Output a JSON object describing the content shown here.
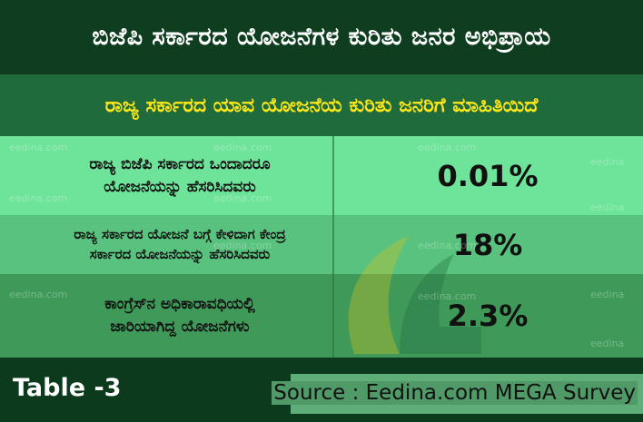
{
  "title": "ಬಿಜೆಪಿ ಸರ್ಕಾರದ ಯೋಜನೆಗಳ ಕುರಿತು ಜನರ ಅಭಿಪ್ರಾಯ",
  "subtitle": "ರಾಜ್ಯ ಸರ್ಕಾರದ ಯಾವ ಯೋಜನೆಯ ಕುರಿತು ಜನರಿಗೆ ಮಾಹಿತಿಯಿದೆ",
  "rows": [
    {
      "label_line1": "ರಾಜ್ಯ ಬಿಜೆಪಿ ಸರ್ಕಾರದ ಒಂದಾದರೂ",
      "label_line2": "ಯೋಜನೆಯನ್ನು ಹೆಸರಿಸಿದವರು",
      "value": "0.01%"
    },
    {
      "label_line1": "ರಾಜ್ಯ ಸರ್ಕಾರದ ಯೋಜನೆ ಬಗ್ಗೆ ಕೇಳಿದಾಗ ಕೇಂದ್ರ",
      "label_line2": "ಸರ್ಕಾರದ ಯೋಜನೆಯನ್ನು ಹೆಸರಿಸಿದವರು",
      "value": "18%"
    },
    {
      "label_line1": "ಕಾಂಗ್ರೆಸ್‌ನ ಅಧಿಕಾರಾವಧಿಯಲ್ಲಿ",
      "label_line2": "ಜಾರಿಯಾಗಿದ್ದ ಯೋಜನೆಗಳು",
      "value": "2.3%"
    }
  ],
  "watermark": "eedina.com",
  "watermark_short": "eedina",
  "table_label": "Table -3",
  "source": "Source : Eedina.com MEGA Survey",
  "colors": {
    "title_bg": "#0f3d20",
    "subtitle_bg": "#1f6b3c",
    "subtitle_text": "#ffe81a",
    "row1_bg": "#6ee39a",
    "row2_bg": "#59c27e",
    "row3_bg": "#3f9a5a"
  }
}
